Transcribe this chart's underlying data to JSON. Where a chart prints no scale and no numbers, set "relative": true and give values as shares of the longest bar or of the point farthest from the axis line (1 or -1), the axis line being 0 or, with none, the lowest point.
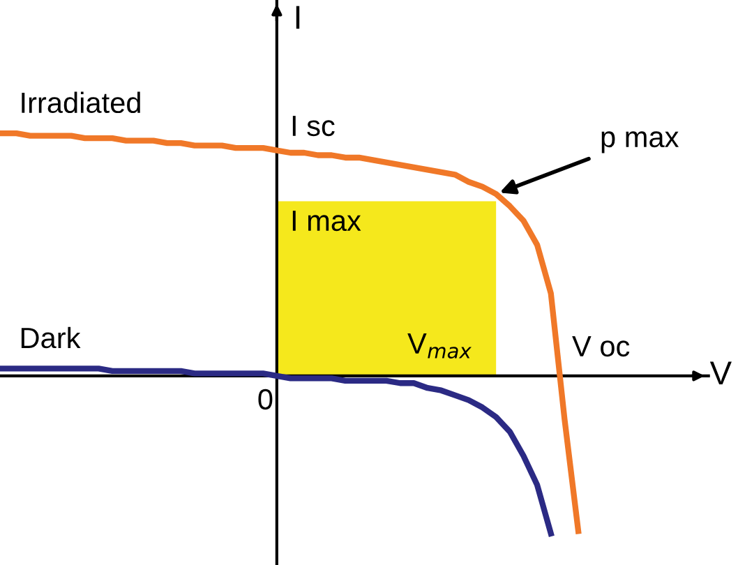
{
  "chart_data": {
    "type": "line",
    "relative": true,
    "xlabel": "V",
    "ylabel": "I",
    "legend": false,
    "marker": "none",
    "line_style": "solid",
    "categories": [
      null,
      null,
      null,
      null,
      null,
      null,
      null,
      null,
      null,
      null,
      null,
      null,
      null,
      null,
      null,
      null,
      null,
      null,
      null,
      null,
      null,
      null,
      null,
      null,
      null,
      null,
      null,
      null,
      null,
      null,
      null,
      null,
      null,
      null,
      null,
      null,
      null,
      null,
      null,
      null,
      null,
      null,
      null,
      null,
      null,
      null,
      null,
      null,
      null,
      null,
      null,
      null
    ],
    "series": [
      {
        "type": "area",
        "color": "#f5e81c",
        "values": [
          null,
          null,
          null,
          null,
          null,
          null,
          null,
          null,
          null,
          null,
          null,
          null,
          null,
          null,
          null,
          null,
          null,
          null,
          null,
          null,
          0.72,
          0.72,
          0.72,
          0.72,
          0.72,
          0.72,
          0.72,
          0.72,
          0.72,
          0.72,
          0.72,
          0.72,
          0.72,
          0.72,
          0.72,
          0.72,
          0.72,
          null,
          null,
          null,
          null,
          null,
          null,
          null,
          null,
          null,
          null,
          null,
          null,
          null,
          null,
          null
        ]
      },
      {
        "name": "Irradiated",
        "color": "#f07828",
        "values": [
          1.0,
          1.0,
          0.99,
          0.99,
          0.99,
          0.99,
          0.98,
          0.98,
          0.98,
          0.97,
          0.97,
          0.97,
          0.96,
          0.96,
          0.95,
          0.95,
          0.95,
          0.94,
          0.94,
          0.94,
          0.93,
          0.92,
          0.92,
          0.91,
          0.91,
          0.9,
          0.9,
          0.89,
          0.88,
          0.87,
          0.86,
          0.85,
          0.84,
          0.83,
          0.8,
          0.78,
          0.75,
          0.7,
          0.64,
          0.54,
          0.34,
          -0.18,
          -0.64,
          null,
          null,
          null,
          null,
          null,
          null,
          null,
          null,
          null
        ]
      },
      {
        "name": "Dark",
        "color": "#2b2a84",
        "values": [
          0.03,
          0.03,
          0.03,
          0.03,
          0.03,
          0.03,
          0.03,
          0.03,
          0.02,
          0.02,
          0.02,
          0.02,
          0.02,
          0.02,
          0.01,
          0.01,
          0.01,
          0.01,
          0.01,
          0.01,
          0,
          -0.01,
          -0.01,
          -0.01,
          -0.01,
          -0.02,
          -0.02,
          -0.02,
          -0.02,
          -0.03,
          -0.03,
          -0.05,
          -0.06,
          -0.08,
          -0.1,
          -0.13,
          -0.17,
          -0.23,
          -0.33,
          -0.45,
          -0.65,
          null,
          null,
          null,
          null,
          null,
          null,
          null,
          null,
          null,
          null,
          null
        ]
      }
    ],
    "annotations": [
      "I sc",
      "I max",
      "V$_{max}$",
      "V oc",
      "p max",
      "0"
    ]
  }
}
